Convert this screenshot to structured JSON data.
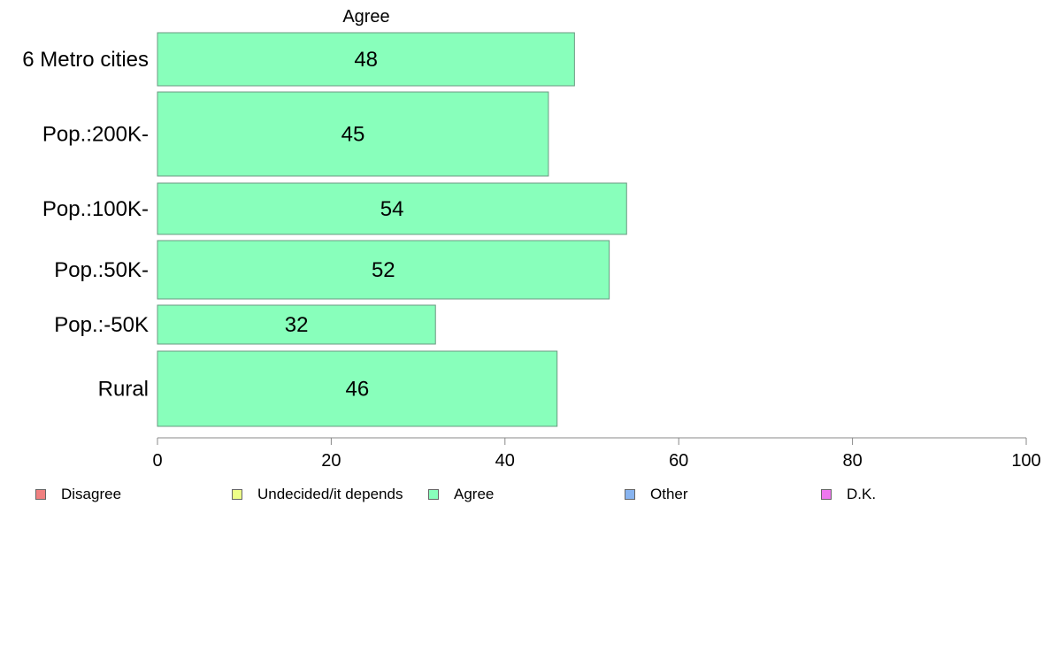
{
  "chart_data": {
    "type": "bar",
    "orientation": "horizontal",
    "title": "Agree",
    "categories": [
      "6 Metro cities",
      "Pop.:200K-",
      "Pop.:100K-",
      "Pop.:50K-",
      "Pop.:-50K",
      "Rural"
    ],
    "series": [
      {
        "name": "Agree",
        "values": [
          48,
          45,
          54,
          52,
          32,
          46
        ],
        "color": "#88ffbb"
      }
    ],
    "xlim": [
      0,
      100
    ],
    "xticks": [
      0,
      20,
      40,
      60,
      80,
      100
    ],
    "grid": false,
    "legend_position": "bottom",
    "legend": [
      {
        "label": "Disagree",
        "color": "#f08080"
      },
      {
        "label": "Undecided/it depends",
        "color": "#eeff88"
      },
      {
        "label": "Agree",
        "color": "#88ffbb"
      },
      {
        "label": "Other",
        "color": "#88b4f0"
      },
      {
        "label": "D.K.",
        "color": "#ee77ee"
      }
    ]
  }
}
